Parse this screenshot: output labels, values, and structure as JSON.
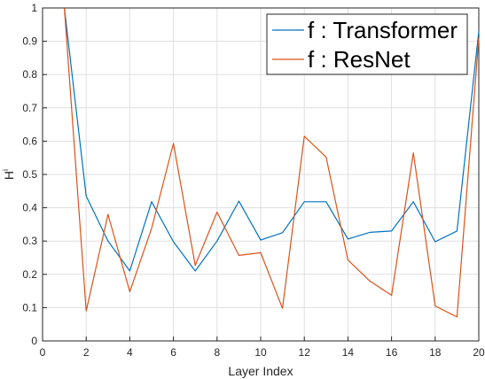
{
  "chart_data": {
    "type": "line",
    "xlabel": "Layer Index",
    "ylabel": "H",
    "ylabel_superscript": "i",
    "xlim": [
      0,
      20
    ],
    "ylim": [
      0,
      1
    ],
    "xticks": [
      "0",
      "2",
      "4",
      "6",
      "8",
      "10",
      "12",
      "14",
      "16",
      "18",
      "20"
    ],
    "yticks": [
      "0",
      "0.1",
      "0.2",
      "0.3",
      "0.4",
      "0.5",
      "0.6",
      "0.7",
      "0.8",
      "0.9",
      "1"
    ],
    "grid": true,
    "legend_position": "top-right",
    "x": [
      1,
      2,
      3,
      4,
      5,
      6,
      7,
      8,
      9,
      10,
      11,
      12,
      13,
      14,
      15,
      16,
      17,
      18,
      19,
      20
    ],
    "series": [
      {
        "name": "f : Transformer",
        "color": "#0072BD",
        "values": [
          1.0,
          0.435,
          0.3,
          0.21,
          0.418,
          0.298,
          0.21,
          0.3,
          0.42,
          0.303,
          0.325,
          0.418,
          0.418,
          0.306,
          0.326,
          0.33,
          0.418,
          0.298,
          0.33,
          0.93
        ]
      },
      {
        "name": "f : ResNet",
        "color": "#D95319",
        "values": [
          1.0,
          0.09,
          0.38,
          0.148,
          0.338,
          0.593,
          0.227,
          0.387,
          0.257,
          0.265,
          0.098,
          0.615,
          0.552,
          0.243,
          0.18,
          0.137,
          0.565,
          0.105,
          0.072,
          0.91
        ]
      }
    ]
  }
}
